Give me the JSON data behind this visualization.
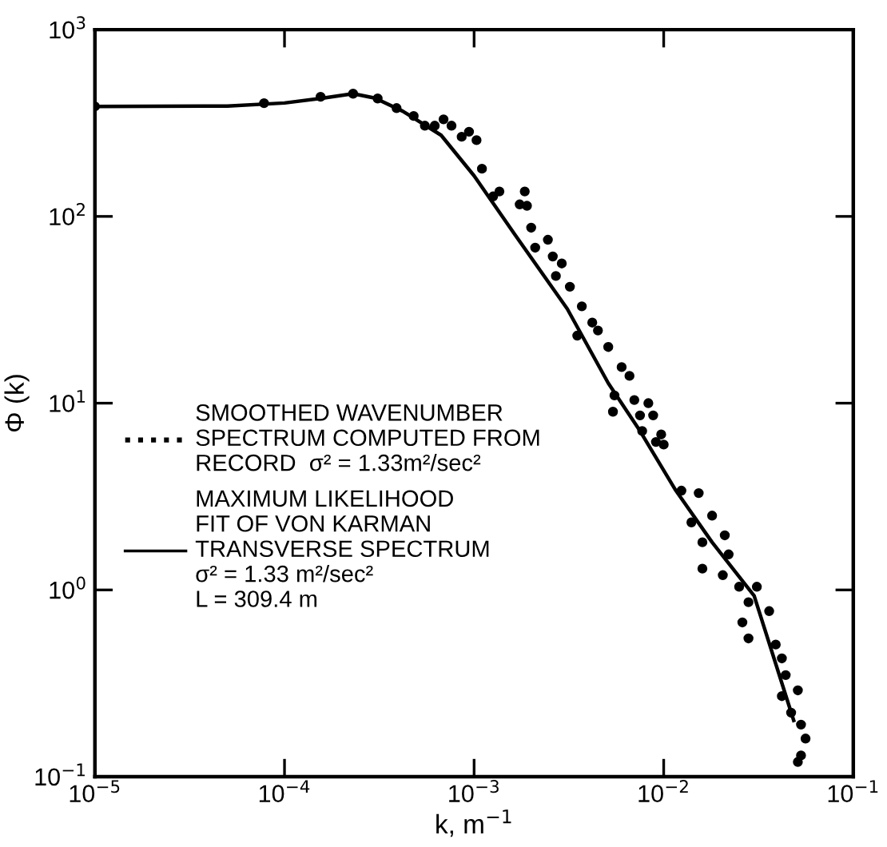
{
  "chart_data": {
    "type": "scatter",
    "xlabel": "k, m$^{−1}$",
    "ylabel": "Φ (k)",
    "log": "xy",
    "xlim": [
      1e-05,
      0.1
    ],
    "ylim": [
      0.1,
      1000.0
    ],
    "xticks": [
      {
        "value": 1e-05,
        "label": "10$^{−5}$"
      },
      {
        "value": 0.0001,
        "label": "10$^{−4}$"
      },
      {
        "value": 0.001,
        "label": "10$^{−3}$"
      },
      {
        "value": 0.01,
        "label": "10$^{−2}$"
      },
      {
        "value": 0.1,
        "label": "10$^{−1}$"
      }
    ],
    "yticks": [
      {
        "value": 0.1,
        "label": "10$^{−1}$"
      },
      {
        "value": 1,
        "label": "10$^{0}$"
      },
      {
        "value": 10,
        "label": "10$^{1}$"
      },
      {
        "value": 100,
        "label": "10$^{2}$"
      },
      {
        "value": 1000,
        "label": "10$^{3}$"
      }
    ],
    "grid": false,
    "legend": "left",
    "series": [
      {
        "name": "SMOOTHED WAVENUMBER\nSPECTRUM COMPUTED FROM\nRECORD  σ² = 1.33m²/sec²",
        "marker": "circle",
        "color": "#000000",
        "x": [
          1e-05,
          7.8e-05,
          0.000155,
          0.00023,
          0.00031,
          0.00039,
          0.00048,
          0.00055,
          0.00062,
          0.00069,
          0.00076,
          0.00086,
          0.00094,
          0.00103,
          0.0011,
          0.00126,
          0.00136,
          0.00185,
          0.00174,
          0.0019,
          0.002,
          0.00245,
          0.0021,
          0.0026,
          0.0029,
          0.0027,
          0.0032,
          0.0037,
          0.0042,
          0.0045,
          0.0035,
          0.0051,
          0.006,
          0.0066,
          0.0055,
          0.007,
          0.0083,
          0.0075,
          0.0054,
          0.0088,
          0.0077,
          0.0097,
          0.01,
          0.0091,
          0.0124,
          0.0153,
          0.018,
          0.014,
          0.016,
          0.021,
          0.022,
          0.016,
          0.0205,
          0.025,
          0.031,
          0.028,
          0.036,
          0.026,
          0.028,
          0.039,
          0.042,
          0.044,
          0.042,
          0.051,
          0.047,
          0.053,
          0.056,
          0.053,
          0.051
        ],
        "values": [
          388,
          404,
          437,
          454,
          428,
          380,
          345,
          306,
          306,
          331,
          306,
          267,
          284,
          256,
          180,
          128,
          136,
          136,
          116,
          114,
          87,
          75,
          68,
          61,
          56,
          48,
          42,
          33,
          27,
          24.5,
          23,
          20,
          15.6,
          14,
          11,
          10.4,
          10,
          8.6,
          9.0,
          8.6,
          7.1,
          6.8,
          6.0,
          6.2,
          3.4,
          3.3,
          2.5,
          2.3,
          1.8,
          1.96,
          1.55,
          1.3,
          1.2,
          1.04,
          1.04,
          0.86,
          0.77,
          0.67,
          0.55,
          0.51,
          0.43,
          0.35,
          0.27,
          0.29,
          0.22,
          0.19,
          0.16,
          0.13,
          0.12
        ]
      },
      {
        "name": "MAXIMUM LIKELIHOOD\nFIT OF VON KARMAN\nTRANSVERSE SPECTRUM\nσ² = 1.33 m²/sec²\nL = 309.4 m",
        "type": "line",
        "marker": "none",
        "line_style": "solid",
        "color": "#000000",
        "x": [
          1e-05,
          5e-05,
          0.0001,
          0.00016,
          0.00023,
          0.0003,
          0.00042,
          0.00067,
          0.001,
          0.00164,
          0.0031,
          0.0051,
          0.0075,
          0.0116,
          0.018,
          0.03,
          0.0485
        ],
        "values": [
          388,
          390,
          405,
          430,
          454,
          430,
          366,
          272,
          165,
          80,
          32,
          12.8,
          7.1,
          3.4,
          1.8,
          0.93,
          0.2
        ]
      }
    ]
  }
}
